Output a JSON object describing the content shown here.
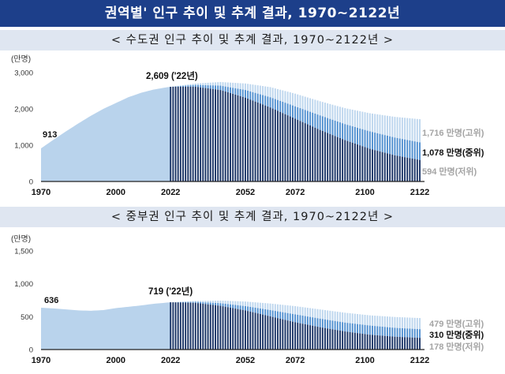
{
  "page_title": "권역별' 인구 추이 및 추계 결과, 1970~2122년",
  "chart_data": [
    {
      "type": "area",
      "title": "< 수도권 인구 추이 및 추계 결과, 1970~2122년 >",
      "ylabel": "(만명)",
      "ylim": [
        0,
        3000
      ],
      "yticks": [
        0,
        1000,
        2000,
        3000
      ],
      "ytick_labels": [
        "0",
        "1,000",
        "2,000",
        "3,000"
      ],
      "xlim": [
        1970,
        2122
      ],
      "xtick_labels": [
        "1970",
        "2000",
        "2022",
        "2052",
        "2072",
        "2100",
        "2122"
      ],
      "xticks": [
        1970,
        2000,
        2022,
        2052,
        2072,
        2100,
        2122
      ],
      "historical": {
        "x": [
          1970,
          1975,
          1980,
          1985,
          1990,
          1995,
          2000,
          2005,
          2010,
          2015,
          2020,
          2022
        ],
        "values": [
          913,
          1150,
          1380,
          1600,
          1810,
          2000,
          2160,
          2320,
          2440,
          2530,
          2590,
          2609
        ]
      },
      "series": [
        {
          "name": "고위",
          "x": [
            2022,
            2032,
            2042,
            2052,
            2062,
            2072,
            2082,
            2092,
            2102,
            2112,
            2122
          ],
          "values": [
            2609,
            2700,
            2740,
            2700,
            2600,
            2420,
            2210,
            2020,
            1880,
            1780,
            1716
          ]
        },
        {
          "name": "중위",
          "x": [
            2022,
            2032,
            2042,
            2052,
            2062,
            2072,
            2082,
            2092,
            2102,
            2112,
            2122
          ],
          "values": [
            2609,
            2660,
            2640,
            2520,
            2320,
            2070,
            1820,
            1580,
            1380,
            1210,
            1078
          ]
        },
        {
          "name": "저위",
          "x": [
            2022,
            2032,
            2042,
            2052,
            2062,
            2072,
            2082,
            2092,
            2102,
            2112,
            2122
          ],
          "values": [
            2609,
            2610,
            2520,
            2310,
            2040,
            1730,
            1420,
            1140,
            900,
            720,
            594
          ]
        }
      ],
      "annotations": {
        "start": "913",
        "base": "2,609 ('22년)",
        "high": "1,716 만명(고위)",
        "mid": "1,078 만명(중위)",
        "low": "594 만명(저위)"
      }
    },
    {
      "type": "area",
      "title": "< 중부권 인구 추이 및 추계 결과, 1970~2122년 >",
      "ylabel": "(만명)",
      "ylim": [
        0,
        1500
      ],
      "yticks": [
        0,
        500,
        1000,
        1500
      ],
      "ytick_labels": [
        "0",
        "500",
        "1,000",
        "1,500"
      ],
      "xlim": [
        1970,
        2122
      ],
      "xtick_labels": [
        "1970",
        "2000",
        "2022",
        "2052",
        "2072",
        "2100",
        "2122"
      ],
      "xticks": [
        1970,
        2000,
        2022,
        2052,
        2072,
        2100,
        2122
      ],
      "historical": {
        "x": [
          1970,
          1975,
          1980,
          1985,
          1990,
          1995,
          2000,
          2005,
          2010,
          2015,
          2020,
          2022
        ],
        "values": [
          636,
          625,
          610,
          595,
          590,
          600,
          630,
          650,
          670,
          695,
          712,
          719
        ]
      },
      "series": [
        {
          "name": "고위",
          "x": [
            2022,
            2032,
            2042,
            2052,
            2062,
            2072,
            2082,
            2092,
            2102,
            2112,
            2122
          ],
          "values": [
            719,
            740,
            745,
            730,
            700,
            660,
            610,
            560,
            520,
            495,
            479
          ]
        },
        {
          "name": "중위",
          "x": [
            2022,
            2032,
            2042,
            2052,
            2062,
            2072,
            2082,
            2092,
            2102,
            2112,
            2122
          ],
          "values": [
            719,
            725,
            705,
            660,
            600,
            535,
            470,
            410,
            365,
            330,
            310
          ]
        },
        {
          "name": "저위",
          "x": [
            2022,
            2032,
            2042,
            2052,
            2062,
            2072,
            2082,
            2092,
            2102,
            2112,
            2122
          ],
          "values": [
            719,
            710,
            665,
            595,
            505,
            415,
            340,
            275,
            225,
            195,
            178
          ]
        }
      ],
      "annotations": {
        "start": "636",
        "base": "719 ('22년)",
        "high": "479 만명(고위)",
        "mid": "310 만명(중위)",
        "low": "178 만명(저위)"
      }
    }
  ]
}
